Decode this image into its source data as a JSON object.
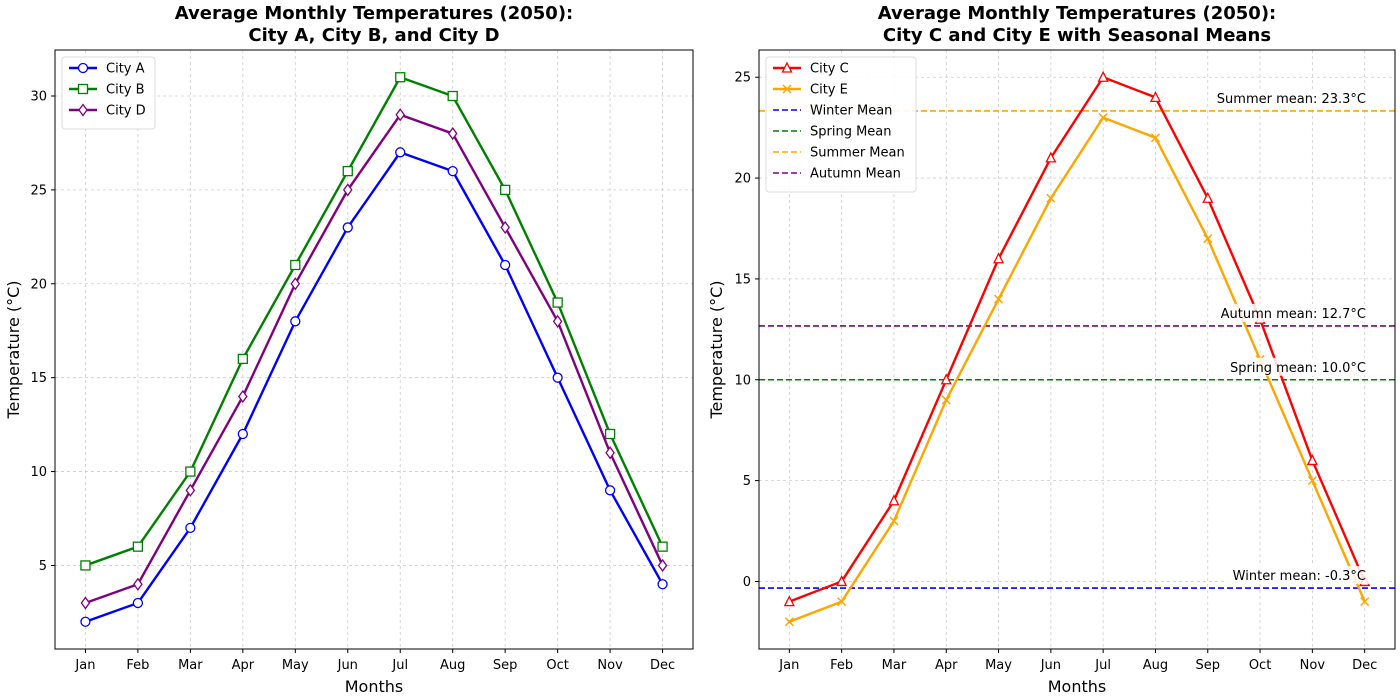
{
  "chart_data": [
    {
      "type": "line",
      "title_lines": [
        "Average Monthly Temperatures (2050):",
        "City A, City B, and City D"
      ],
      "xlabel": "Months",
      "ylabel": "Temperature (°C)",
      "categories": [
        "Jan",
        "Feb",
        "Mar",
        "Apr",
        "May",
        "Jun",
        "Jul",
        "Aug",
        "Sep",
        "Oct",
        "Nov",
        "Dec"
      ],
      "ylim": [
        0.55,
        32.45
      ],
      "yticks": [
        5,
        10,
        15,
        20,
        25,
        30
      ],
      "grid": true,
      "legend_position": "top-left",
      "series": [
        {
          "name": "City A",
          "color": "#0000ff",
          "marker": "circle",
          "values": [
            2,
            3,
            7,
            12,
            18,
            23,
            27,
            26,
            21,
            15,
            9,
            4
          ]
        },
        {
          "name": "City B",
          "color": "#008000",
          "marker": "square",
          "values": [
            5,
            6,
            10,
            16,
            21,
            26,
            31,
            30,
            25,
            19,
            12,
            6
          ]
        },
        {
          "name": "City D",
          "color": "#800080",
          "marker": "diamond",
          "values": [
            3,
            4,
            9,
            14,
            20,
            25,
            29,
            28,
            23,
            18,
            11,
            5
          ]
        }
      ]
    },
    {
      "type": "line",
      "title_lines": [
        "Average Monthly Temperatures (2050):",
        "City C and City E with Seasonal Means"
      ],
      "xlabel": "Months",
      "ylabel": "Temperature (°C)",
      "categories": [
        "Jan",
        "Feb",
        "Mar",
        "Apr",
        "May",
        "Jun",
        "Jul",
        "Aug",
        "Sep",
        "Oct",
        "Nov",
        "Dec"
      ],
      "ylim": [
        -3.35,
        26.35
      ],
      "yticks": [
        0,
        5,
        10,
        15,
        20,
        25
      ],
      "grid": true,
      "legend_position": "top-left",
      "series": [
        {
          "name": "City C",
          "color": "#ff0000",
          "marker": "triangle",
          "values": [
            -1,
            0,
            4,
            10,
            16,
            21,
            25,
            24,
            19,
            13,
            6,
            0
          ]
        },
        {
          "name": "City E",
          "color": "#ffa500",
          "marker": "x",
          "values": [
            -2,
            -1,
            3,
            9,
            14,
            19,
            23,
            22,
            17,
            11,
            5,
            -1
          ]
        }
      ],
      "reference_lines": [
        {
          "name": "Winter Mean",
          "color": "#0000ff",
          "value": -0.33,
          "label": "Winter mean: -0.3°C"
        },
        {
          "name": "Spring Mean",
          "color": "#008000",
          "value": 10.0,
          "label": "Spring mean: 10.0°C"
        },
        {
          "name": "Summer Mean",
          "color": "#ffa500",
          "value": 23.33,
          "label": "Summer mean: 23.3°C"
        },
        {
          "name": "Autumn Mean",
          "color": "#800080",
          "value": 12.67,
          "label": "Autumn mean: 12.7°C"
        }
      ]
    }
  ]
}
